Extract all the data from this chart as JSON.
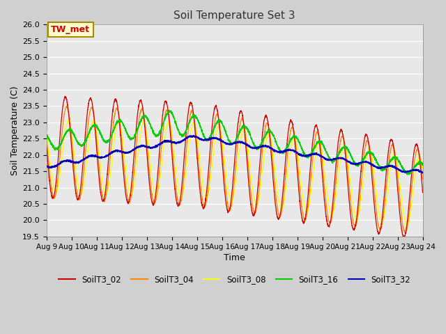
{
  "title": "Soil Temperature Set 3",
  "xlabel": "Time",
  "ylabel": "Soil Temperature (C)",
  "ylim": [
    19.5,
    26.0
  ],
  "yticks": [
    19.5,
    20.0,
    20.5,
    21.0,
    21.5,
    22.0,
    22.5,
    23.0,
    23.5,
    24.0,
    24.5,
    25.0,
    25.5,
    26.0
  ],
  "annotation_text": "TW_met",
  "annotation_bg": "#ffffcc",
  "annotation_border": "#aa8800",
  "fig_bg_color": "#d0d0d0",
  "plot_bg_color": "#e8e8e8",
  "grid_color": "#ffffff",
  "series_colors": {
    "SoilT3_02": "#cc0000",
    "SoilT3_04": "#ff8800",
    "SoilT3_08": "#ffff00",
    "SoilT3_16": "#00cc00",
    "SoilT3_32": "#0000bb"
  },
  "legend_labels": [
    "SoilT3_02",
    "SoilT3_04",
    "SoilT3_08",
    "SoilT3_16",
    "SoilT3_32"
  ]
}
